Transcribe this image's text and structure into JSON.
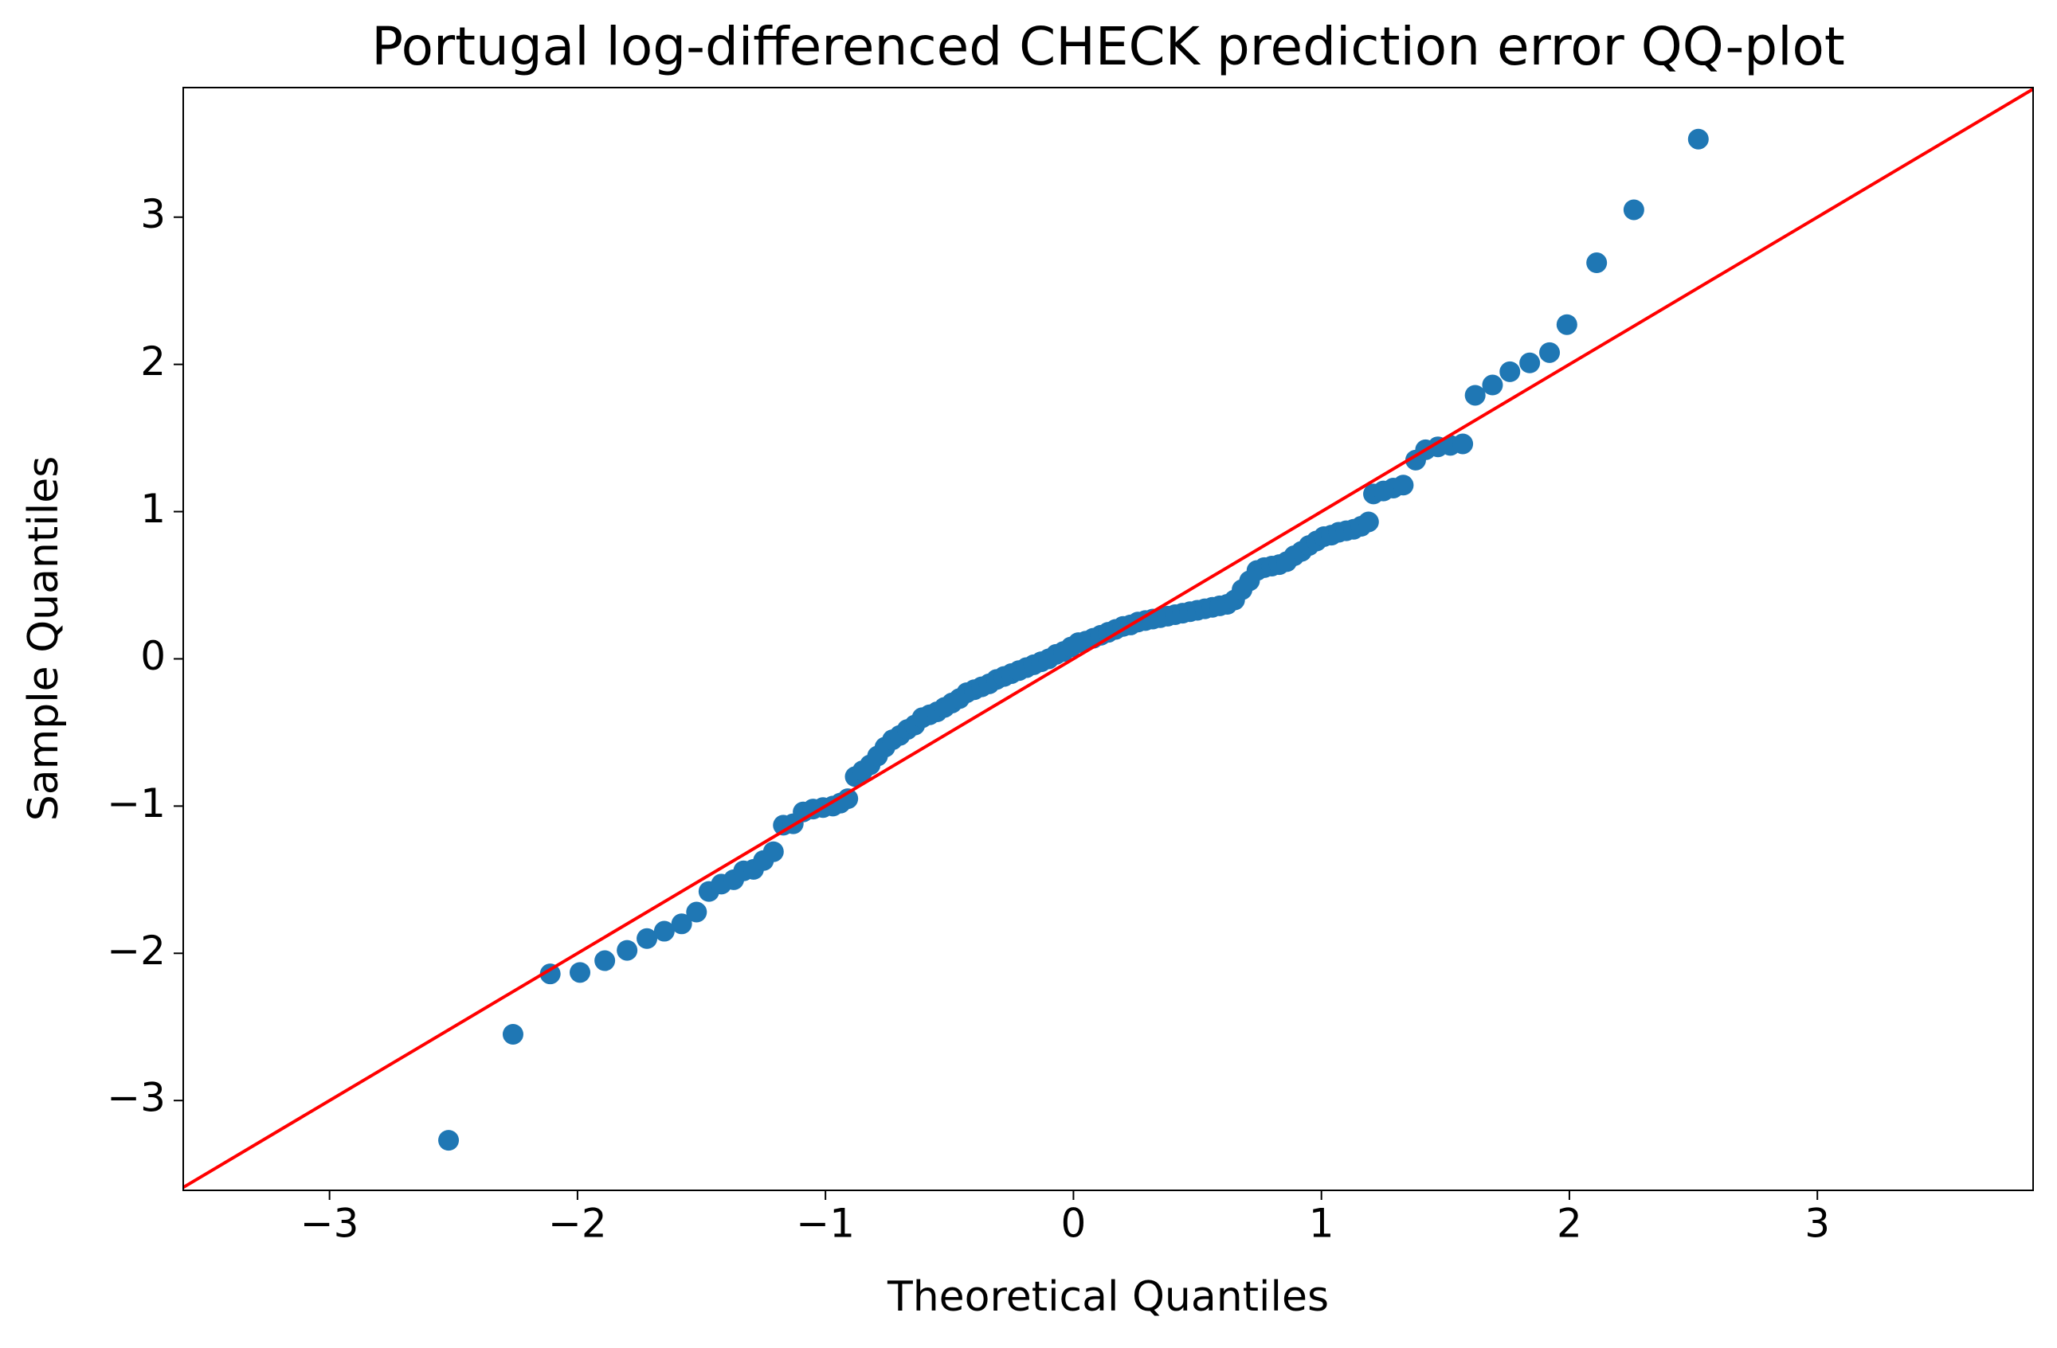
{
  "chart_data": {
    "type": "scatter",
    "title": "Portugal log-differenced CHECK prediction error QQ-plot",
    "x_label": "Theoretical Quantiles",
    "y_label": "Sample Quantiles",
    "color": "#1f77b4",
    "reference_line_color": "#ff0000",
    "xlim": [
      -3.59,
      3.87
    ],
    "ylim": [
      -3.61,
      3.88
    ],
    "xticks": [
      {
        "value": -3,
        "label": "−3"
      },
      {
        "value": -2,
        "label": "−2"
      },
      {
        "value": -1,
        "label": "−1"
      },
      0,
      1,
      2,
      3
    ],
    "yticks": [
      {
        "value": -3,
        "label": "−3"
      },
      {
        "value": -2,
        "label": "−2"
      },
      {
        "value": -1,
        "label": "−1"
      },
      0,
      1,
      2,
      3
    ],
    "x": [
      -2.52,
      -2.26,
      -2.11,
      -1.99,
      -1.89,
      -1.8,
      -1.72,
      -1.65,
      -1.58,
      -1.52,
      -1.47,
      -1.42,
      -1.37,
      -1.33,
      -1.29,
      -1.25,
      -1.21,
      -1.17,
      -1.13,
      -1.09,
      -1.05,
      -1.01,
      -0.97,
      -0.94,
      -0.91,
      -0.88,
      -0.85,
      -0.82,
      -0.79,
      -0.76,
      -0.73,
      -0.7,
      -0.67,
      -0.64,
      -0.61,
      -0.58,
      -0.55,
      -0.52,
      -0.49,
      -0.46,
      -0.43,
      -0.4,
      -0.37,
      -0.34,
      -0.31,
      -0.28,
      -0.25,
      -0.22,
      -0.19,
      -0.16,
      -0.13,
      -0.1,
      -0.07,
      -0.04,
      -0.01,
      0.02,
      0.05,
      0.08,
      0.11,
      0.14,
      0.17,
      0.2,
      0.23,
      0.26,
      0.29,
      0.32,
      0.35,
      0.38,
      0.41,
      0.44,
      0.47,
      0.5,
      0.53,
      0.56,
      0.59,
      0.62,
      0.65,
      0.68,
      0.71,
      0.74,
      0.77,
      0.8,
      0.83,
      0.86,
      0.89,
      0.92,
      0.95,
      0.98,
      1.01,
      1.04,
      1.07,
      1.1,
      1.13,
      1.16,
      1.19,
      1.21,
      1.25,
      1.29,
      1.33,
      1.38,
      1.42,
      1.47,
      1.52,
      1.57,
      1.62,
      1.69,
      1.76,
      1.84,
      1.92,
      1.99,
      2.11,
      2.26,
      2.52
    ],
    "values": [
      -3.27,
      -2.55,
      -2.14,
      -2.13,
      -2.05,
      -1.98,
      -1.9,
      -1.85,
      -1.8,
      -1.72,
      -1.58,
      -1.53,
      -1.5,
      -1.44,
      -1.43,
      -1.37,
      -1.31,
      -1.13,
      -1.12,
      -1.04,
      -1.02,
      -1.01,
      -1.0,
      -0.98,
      -0.95,
      -0.8,
      -0.76,
      -0.72,
      -0.66,
      -0.6,
      -0.55,
      -0.52,
      -0.48,
      -0.45,
      -0.4,
      -0.38,
      -0.36,
      -0.33,
      -0.3,
      -0.27,
      -0.23,
      -0.21,
      -0.19,
      -0.17,
      -0.14,
      -0.12,
      -0.1,
      -0.08,
      -0.06,
      -0.04,
      -0.02,
      0.0,
      0.03,
      0.05,
      0.08,
      0.11,
      0.12,
      0.14,
      0.16,
      0.18,
      0.2,
      0.22,
      0.23,
      0.25,
      0.26,
      0.27,
      0.28,
      0.29,
      0.3,
      0.31,
      0.32,
      0.33,
      0.34,
      0.35,
      0.36,
      0.37,
      0.4,
      0.47,
      0.53,
      0.6,
      0.62,
      0.63,
      0.64,
      0.66,
      0.7,
      0.73,
      0.77,
      0.8,
      0.83,
      0.84,
      0.86,
      0.87,
      0.88,
      0.9,
      0.93,
      1.12,
      1.14,
      1.16,
      1.18,
      1.35,
      1.42,
      1.44,
      1.45,
      1.46,
      1.79,
      1.86,
      1.95,
      2.01,
      2.08,
      2.27,
      2.69,
      3.05,
      3.53
    ]
  }
}
